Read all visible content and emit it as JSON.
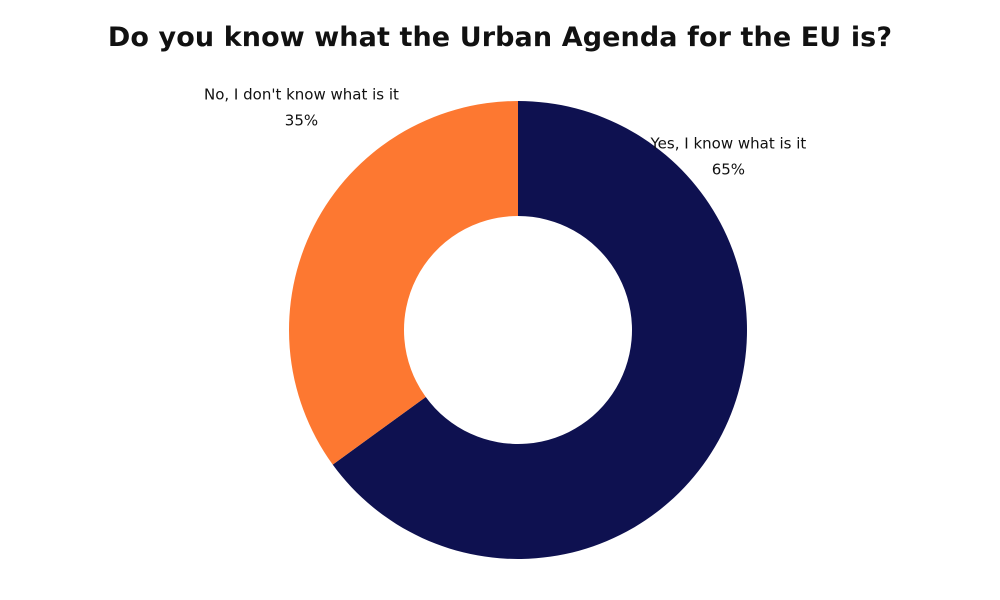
{
  "chart_data": {
    "type": "pie",
    "variant": "donut",
    "title": "Do you know what the Urban Agenda for the EU is?",
    "start_angle_deg": 0,
    "direction": "clockwise",
    "slices": [
      {
        "name": "Yes, I know what is it",
        "value": 65,
        "value_label": "65%",
        "color": "#0e1150",
        "label_side": "right"
      },
      {
        "name": "No, I don't know what is it",
        "value": 35,
        "value_label": "35%",
        "color": "#fd7831",
        "label_side": "left"
      }
    ]
  }
}
